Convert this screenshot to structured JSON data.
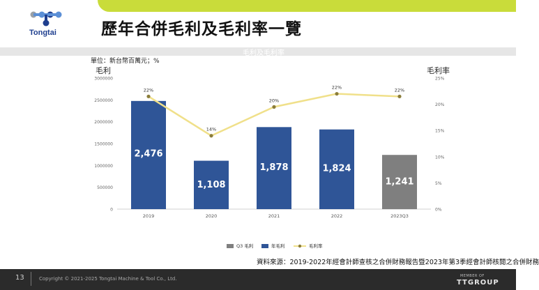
{
  "brand": {
    "name": "Tongtai",
    "color": "#1f3f8f"
  },
  "slide": {
    "title": "歷年合併毛利及毛利率一覽",
    "ghost_title": "毛利及毛利率",
    "unit": "單位：新台幣百萬元；%",
    "source": "資料來源：2019-2022年經會計師查核之合併財務報告暨2023年第3季經會計師核閱之合併財務"
  },
  "chart_data": {
    "type": "bar",
    "categories": [
      "2019",
      "2020",
      "2021",
      "2022",
      "2023Q3"
    ],
    "y_left_label": "毛利",
    "y_right_label": "毛利率",
    "y_left_ticks": [
      "3000000",
      "2500000",
      "2000000",
      "1500000",
      "1000000",
      "500000",
      "0"
    ],
    "y_right_ticks": [
      "25%",
      "20%",
      "15%",
      "10%",
      "5%",
      "0%"
    ],
    "ylim_left": [
      0,
      3000000
    ],
    "ylim_right": [
      0,
      25
    ],
    "bars": [
      {
        "category": "2019",
        "value": 2476000,
        "label": "2,476",
        "series": "年毛利"
      },
      {
        "category": "2020",
        "value": 1108000,
        "label": "1,108",
        "series": "年毛利"
      },
      {
        "category": "2021",
        "value": 1878000,
        "label": "1,878",
        "series": "年毛利"
      },
      {
        "category": "2022",
        "value": 1824000,
        "label": "1,824",
        "series": "年毛利"
      },
      {
        "category": "2023Q3",
        "value": 1241000,
        "label": "1,241",
        "series": "Q3 毛利"
      }
    ],
    "margin_line": {
      "name": "毛利率",
      "values": [
        21.5,
        14,
        19.5,
        22,
        21.5
      ],
      "labels": [
        "22%",
        "14%",
        "20%",
        "22%",
        "22%"
      ]
    },
    "legend": [
      {
        "name": "Q3 毛利",
        "color": "#7f7f7f",
        "kind": "bar"
      },
      {
        "name": "年毛利",
        "color": "#2f5597",
        "kind": "bar"
      },
      {
        "name": "毛利率",
        "color": "#f0e08a",
        "kind": "line"
      }
    ],
    "colors": {
      "annual": "#2f5597",
      "q3": "#7f7f7f",
      "line": "#f0e08a",
      "marker": "#8b7d3a"
    }
  },
  "footer": {
    "page_number": "13",
    "copyright": "Copyright © 2021-2025 Tongtai Machine & Tool Co., Ltd.",
    "member_of": "MEMBER OF",
    "group": "TTGROUP"
  }
}
